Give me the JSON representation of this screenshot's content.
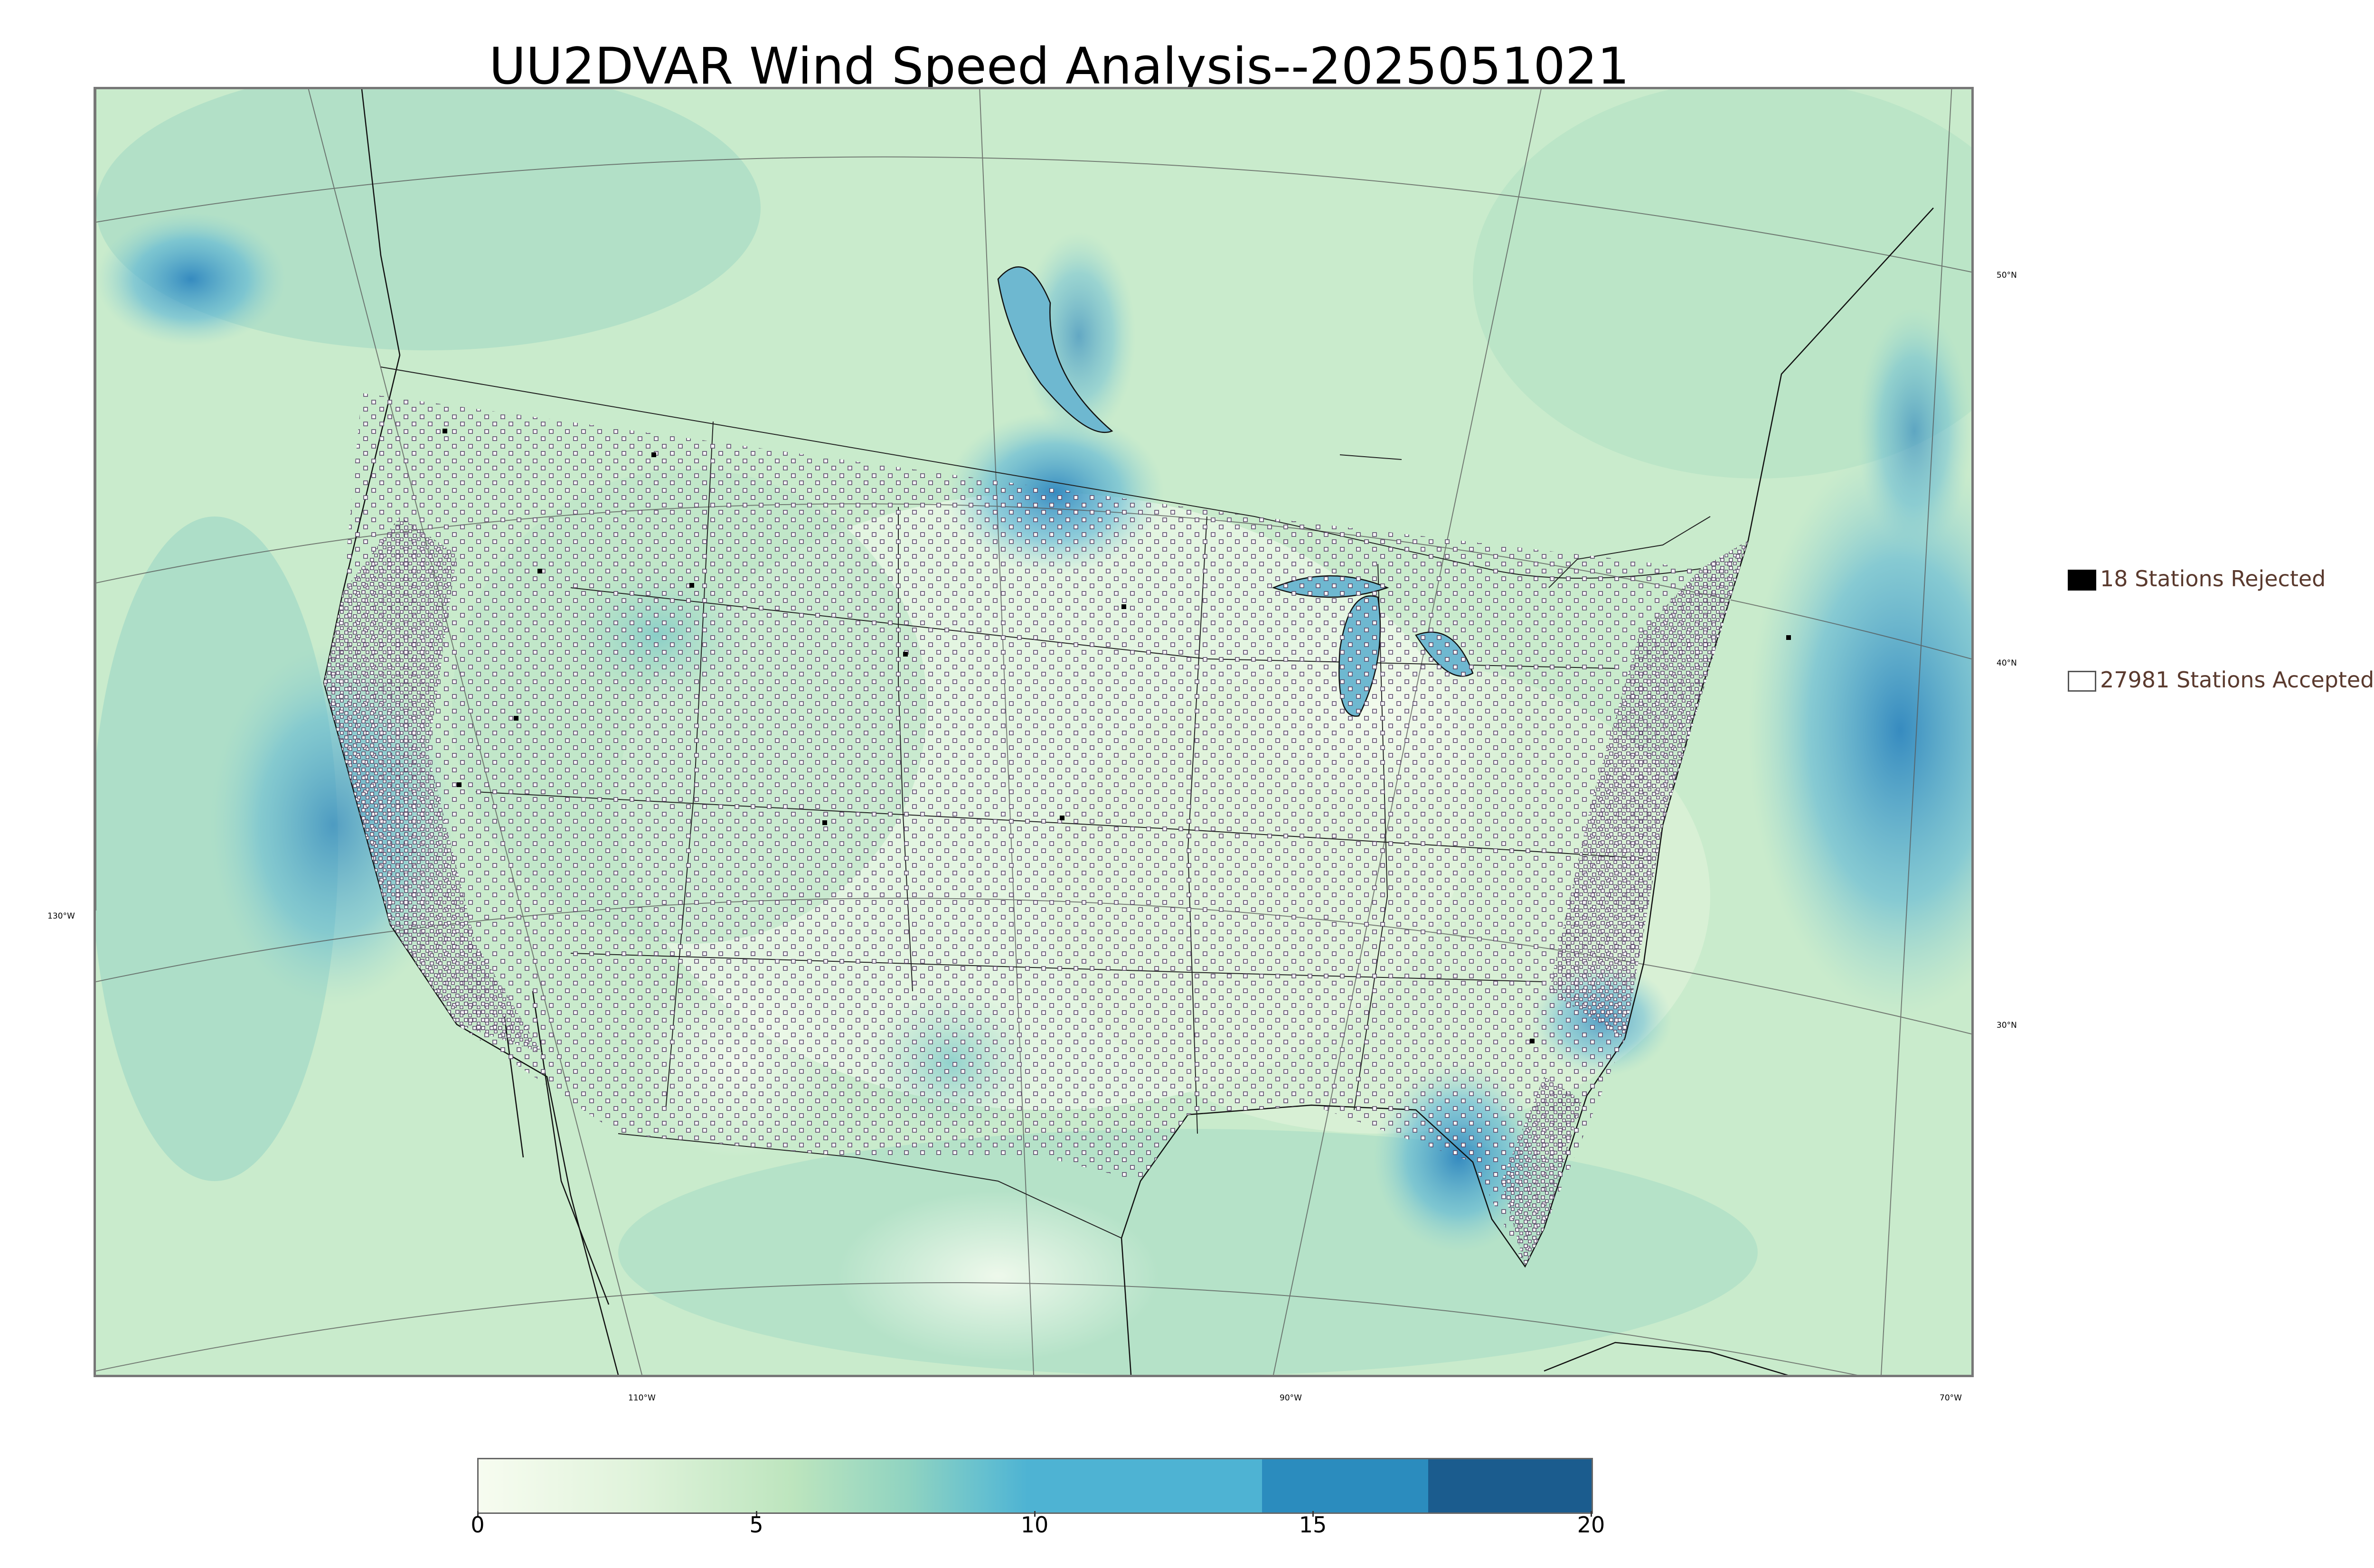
{
  "title": "UU2DVAR Wind Speed Analysis--2025051021",
  "map": {
    "lon_labels": [
      "130°W",
      "110°W",
      "90°W",
      "70°W"
    ],
    "lat_labels": [
      "50°N",
      "40°N",
      "30°N"
    ]
  },
  "legend": {
    "rejected": {
      "label": "18 Stations Rejected",
      "count": 18,
      "symbol": "filled-black-square"
    },
    "accepted": {
      "label": "27981 Stations Accepted",
      "count": 27981,
      "symbol": "open-square"
    }
  },
  "colorbar": {
    "ticks": [
      "0",
      "5",
      "10",
      "15",
      "20"
    ],
    "range": [
      0,
      20
    ],
    "colormap": "GnBu",
    "color_low": "#f7fcf0",
    "color_high": "#1b5c8e"
  },
  "colors": {
    "land_field": "#d9f0d3",
    "water_field": "#a8dcc4",
    "high_wind": "#3e9cc8",
    "station_marker": "#5b4a6a"
  }
}
